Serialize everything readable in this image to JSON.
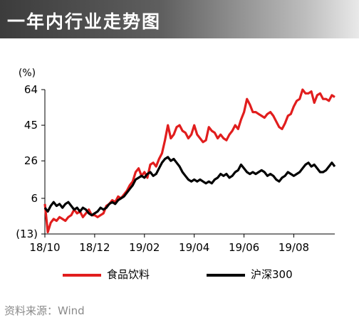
{
  "header": {
    "title": "一年内行业走势图"
  },
  "source": "资料来源：Wind",
  "chart_data": {
    "type": "line",
    "ylabel": "(%)",
    "ylim": [
      -13,
      64
    ],
    "yticks": [
      64,
      45,
      26,
      6,
      -13
    ],
    "ytick_labels": [
      "64",
      "45",
      "26",
      "6",
      "(13)"
    ],
    "xtick_labels": [
      "18/10",
      "18/12",
      "19/02",
      "19/04",
      "19/06",
      "19/08"
    ],
    "x_count": 100,
    "xtick_index": [
      0,
      17,
      34,
      51,
      68,
      85
    ],
    "legend_position": "bottom",
    "series": [
      {
        "name": "食品饮料",
        "color": "#e11d1d",
        "values": [
          3,
          -12,
          -7,
          -5,
          -6,
          -4,
          -5,
          -6,
          -4,
          -3,
          0,
          -2,
          -1,
          -4,
          -2,
          0,
          -3,
          -3,
          -4,
          -3,
          -2,
          2,
          3,
          5,
          4,
          7,
          6,
          8,
          10,
          13,
          15,
          20,
          22,
          18,
          20,
          17,
          24,
          25,
          23,
          27,
          30,
          37,
          45,
          38,
          40,
          44,
          45,
          42,
          41,
          38,
          40,
          45,
          40,
          38,
          36,
          37,
          44,
          42,
          41,
          38,
          40,
          38,
          37,
          40,
          42,
          45,
          43,
          48,
          52,
          59,
          56,
          52,
          52,
          51,
          50,
          49,
          51,
          52,
          50,
          47,
          44,
          43,
          46,
          50,
          51,
          55,
          58,
          59,
          64,
          62,
          62,
          63,
          57,
          61,
          62,
          59,
          59,
          58,
          61,
          60
        ]
      },
      {
        "name": "沪深300",
        "color": "#000000",
        "values": [
          1,
          -1,
          2,
          4,
          2,
          3,
          1,
          3,
          4,
          2,
          0,
          1,
          -1,
          1,
          0,
          -2,
          -3,
          -2,
          -1,
          1,
          0,
          1,
          3,
          4,
          3,
          5,
          6,
          7,
          9,
          11,
          13,
          16,
          17,
          18,
          17,
          19,
          20,
          18,
          19,
          22,
          25,
          27,
          28,
          26,
          27,
          25,
          23,
          20,
          18,
          16,
          15,
          16,
          15,
          16,
          15,
          14,
          15,
          14,
          16,
          17,
          19,
          18,
          19,
          17,
          18,
          20,
          21,
          24,
          22,
          20,
          19,
          20,
          19,
          20,
          21,
          20,
          18,
          19,
          18,
          16,
          15,
          17,
          18,
          20,
          19,
          18,
          19,
          20,
          22,
          24,
          25,
          23,
          24,
          22,
          20,
          20,
          21,
          23,
          25,
          23
        ]
      }
    ]
  }
}
